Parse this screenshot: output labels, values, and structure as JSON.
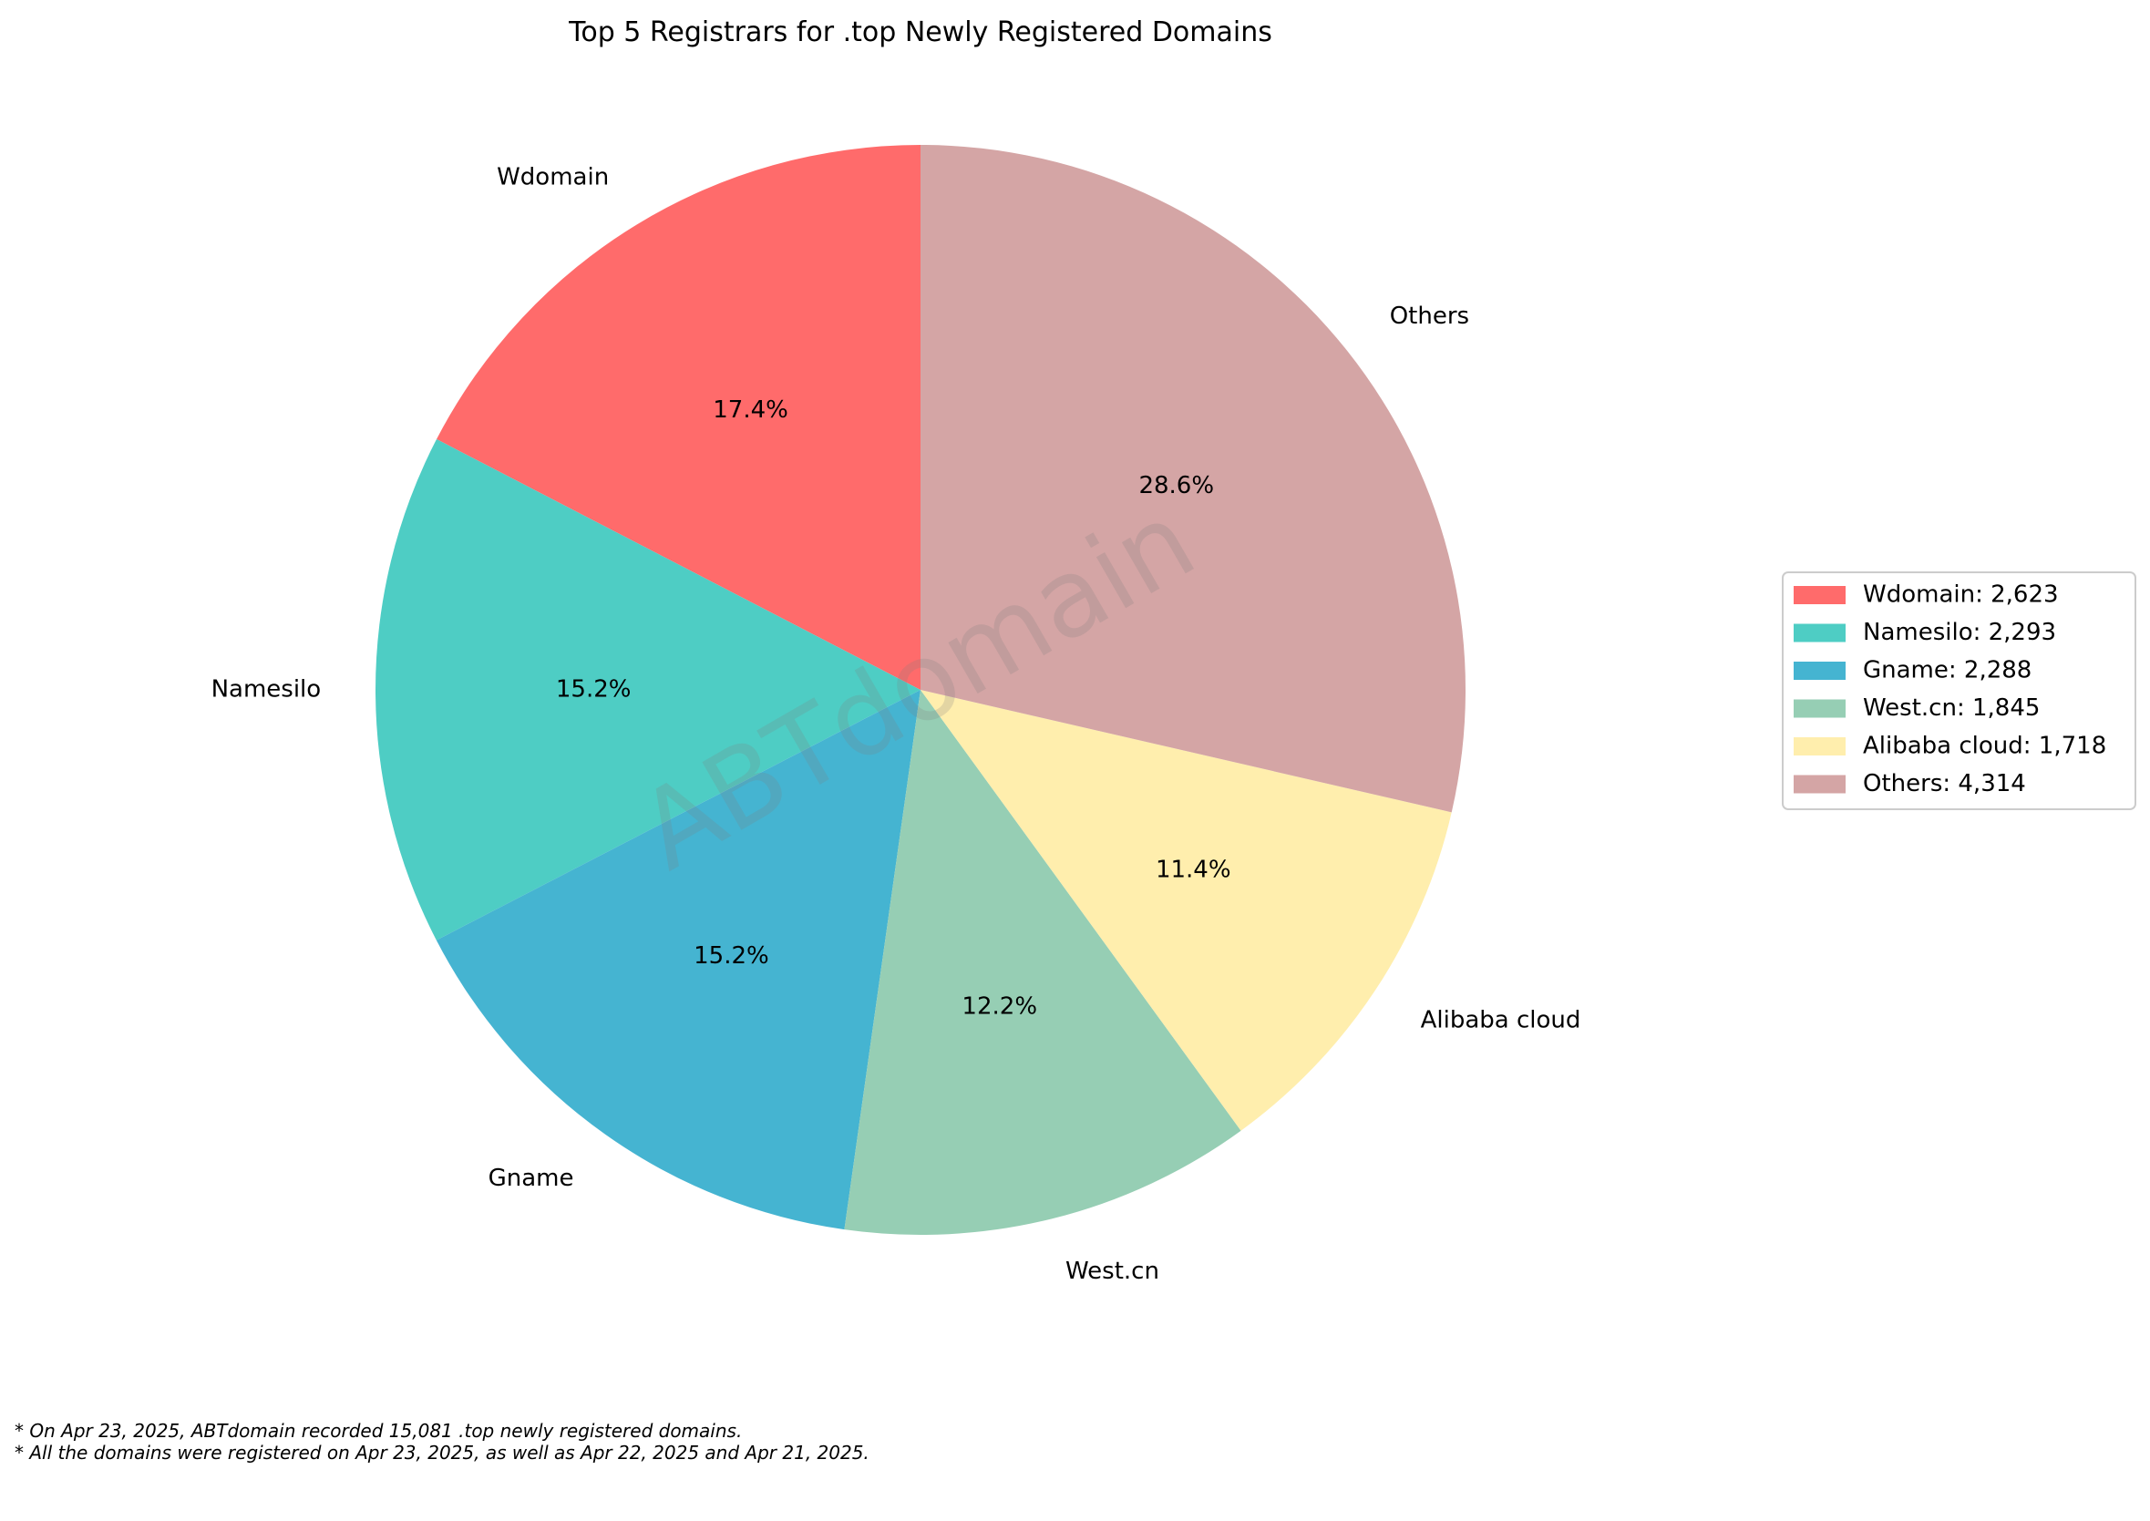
{
  "chart_data": {
    "type": "pie",
    "title": "Top 5 Registrars for .top Newly Registered Domains",
    "watermark": "ABTdomain",
    "start_angle_deg": 90,
    "direction": "counterclockwise",
    "legend_position": "right",
    "slices": [
      {
        "label": "Wdomain",
        "value": 2623,
        "percent_label": "17.4%",
        "legend_label": "Wdomain: 2,623",
        "color": "#FF6B6B"
      },
      {
        "label": "Namesilo",
        "value": 2293,
        "percent_label": "15.2%",
        "legend_label": "Namesilo: 2,293",
        "color": "#4ECDC4"
      },
      {
        "label": "Gname",
        "value": 2288,
        "percent_label": "15.2%",
        "legend_label": "Gname: 2,288",
        "color": "#45B4D1"
      },
      {
        "label": "West.cn",
        "value": 1845,
        "percent_label": "12.2%",
        "legend_label": "West.cn: 1,845",
        "color": "#96CEB4"
      },
      {
        "label": "Alibaba cloud",
        "value": 1718,
        "percent_label": "11.4%",
        "legend_label": "Alibaba cloud: 1,718",
        "color": "#FFEEAD"
      },
      {
        "label": "Others",
        "value": 4314,
        "percent_label": "28.6%",
        "legend_label": "Others: 4,314",
        "color": "#D4A5A5"
      }
    ]
  },
  "footnotes": [
    "* On Apr 23, 2025, ABTdomain recorded 15,081 .top newly registered domains.",
    "* All the domains were registered on Apr 23, 2025, as well as Apr 22, 2025 and Apr 21, 2025."
  ]
}
